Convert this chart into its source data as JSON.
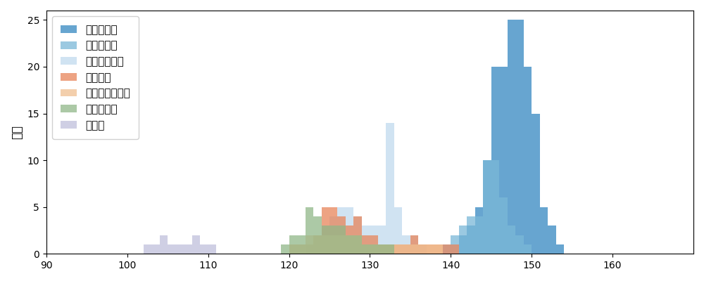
{
  "ylabel": "球数",
  "xlim": [
    90,
    170
  ],
  "ylim": [
    0,
    26
  ],
  "pitch_types": [
    {
      "name": "ストレート",
      "color": "#4c96c8",
      "alpha": 0.85,
      "speeds": [
        141,
        141,
        142,
        142,
        142,
        143,
        143,
        143,
        143,
        143,
        144,
        144,
        144,
        144,
        144,
        144,
        144,
        144,
        144,
        144,
        145,
        145,
        145,
        145,
        145,
        145,
        145,
        145,
        145,
        145,
        145,
        145,
        145,
        145,
        145,
        145,
        145,
        145,
        145,
        145,
        146,
        146,
        146,
        146,
        146,
        146,
        146,
        146,
        146,
        146,
        146,
        146,
        146,
        146,
        146,
        146,
        146,
        146,
        146,
        146,
        147,
        147,
        147,
        147,
        147,
        147,
        147,
        147,
        147,
        147,
        147,
        147,
        147,
        147,
        147,
        147,
        147,
        147,
        147,
        147,
        147,
        147,
        147,
        147,
        147,
        148,
        148,
        148,
        148,
        148,
        148,
        148,
        148,
        148,
        148,
        148,
        148,
        148,
        148,
        148,
        148,
        148,
        148,
        148,
        148,
        148,
        148,
        148,
        148,
        148,
        149,
        149,
        149,
        149,
        149,
        149,
        149,
        149,
        149,
        149,
        149,
        149,
        149,
        149,
        149,
        149,
        149,
        149,
        149,
        149,
        150,
        150,
        150,
        150,
        150,
        150,
        150,
        150,
        150,
        150,
        150,
        150,
        150,
        150,
        150,
        151,
        151,
        151,
        151,
        151,
        152,
        152,
        152,
        153
      ]
    },
    {
      "name": "ツーシーム",
      "color": "#7ab8d8",
      "alpha": 0.75,
      "speeds": [
        139,
        140,
        140,
        141,
        141,
        141,
        142,
        142,
        142,
        142,
        143,
        143,
        143,
        143,
        144,
        144,
        144,
        144,
        144,
        144,
        144,
        144,
        144,
        144,
        145,
        145,
        145,
        145,
        145,
        145,
        145,
        145,
        145,
        145,
        146,
        146,
        146,
        146,
        146,
        146,
        147,
        147,
        147,
        148,
        148,
        149
      ]
    },
    {
      "name": "カットボール",
      "color": "#c8dff0",
      "alpha": 0.85,
      "speeds": [
        122,
        123,
        123,
        124,
        124,
        124,
        125,
        125,
        125,
        125,
        126,
        126,
        126,
        126,
        126,
        127,
        127,
        127,
        127,
        127,
        128,
        128,
        128,
        128,
        129,
        129,
        129,
        130,
        130,
        130,
        131,
        131,
        131,
        132,
        132,
        132,
        132,
        132,
        132,
        132,
        132,
        132,
        132,
        132,
        132,
        132,
        132,
        133,
        133,
        133,
        133,
        133,
        134,
        134,
        135,
        135,
        136
      ]
    },
    {
      "name": "フォーク",
      "color": "#e8845a",
      "alpha": 0.75,
      "speeds": [
        120,
        121,
        122,
        123,
        123,
        124,
        124,
        124,
        124,
        124,
        125,
        125,
        125,
        125,
        125,
        126,
        126,
        126,
        126,
        127,
        127,
        127,
        128,
        128,
        128,
        128,
        129,
        129,
        130,
        130,
        131,
        132,
        133,
        134,
        135,
        135,
        136,
        137,
        138,
        139,
        140
      ]
    },
    {
      "name": "チェンジアップ",
      "color": "#f0c090",
      "alpha": 0.75,
      "speeds": [
        120,
        121,
        122,
        122,
        123,
        123,
        124,
        124,
        125,
        125,
        126,
        126,
        127,
        127,
        128,
        128,
        129,
        130,
        131,
        132,
        133,
        134,
        135,
        136,
        137,
        138
      ]
    },
    {
      "name": "スライダー",
      "color": "#90b888",
      "alpha": 0.75,
      "speeds": [
        119,
        120,
        120,
        121,
        121,
        122,
        122,
        122,
        122,
        122,
        123,
        123,
        123,
        123,
        124,
        124,
        124,
        125,
        125,
        125,
        126,
        126,
        126,
        127,
        127,
        128,
        128,
        129,
        130,
        131,
        132
      ]
    },
    {
      "name": "カーブ",
      "color": "#c0c0dc",
      "alpha": 0.75,
      "speeds": [
        102,
        103,
        104,
        104,
        105,
        106,
        107,
        108,
        108,
        109,
        110
      ]
    }
  ]
}
